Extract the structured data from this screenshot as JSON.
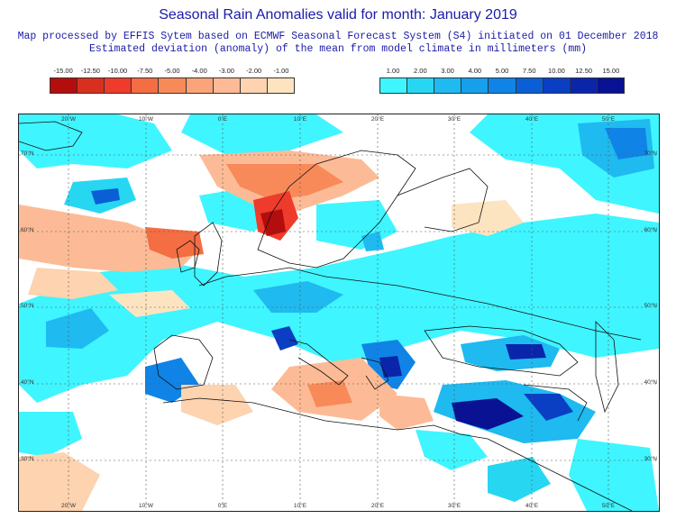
{
  "title": "Seasonal Rain Anomalies valid for month: January 2019",
  "subtitle_1": "Map processed by EFFIS Sytem based on ECMWF Seasonal Forecast System (S4) initiated on 01 December 2018",
  "subtitle_2": "Estimated deviation (anomaly) of the mean from model climate in millimeters (mm)",
  "legend_negative": {
    "labels": [
      "-15.00",
      "-12.50",
      "-10.00",
      "-7.50",
      "-5.00",
      "-4.00",
      "-3.00",
      "-2.00",
      "-1.00"
    ],
    "colors": [
      "#b30d0d",
      "#d7301f",
      "#ef3b2c",
      "#f46d43",
      "#f88a5a",
      "#fba47a",
      "#fcbb96",
      "#fdd3b0",
      "#fde4c0"
    ]
  },
  "legend_positive": {
    "labels": [
      "1.00",
      "2.00",
      "3.00",
      "4.00",
      "5.00",
      "7.50",
      "10.00",
      "12.50",
      "15.00"
    ],
    "colors": [
      "#3ff5ff",
      "#27d7f2",
      "#1ebaf0",
      "#16a0ec",
      "#0f84e6",
      "#0b5fd6",
      "#0a3fc4",
      "#0a25aa",
      "#081292"
    ]
  },
  "map": {
    "lon_labels_top": [
      "20°W",
      "10°W",
      "0°E",
      "10°E",
      "20°E",
      "30°E",
      "40°E",
      "50°E"
    ],
    "lon_labels_bottom": [
      "20°W",
      "10°W",
      "0°E",
      "10°E",
      "20°E",
      "30°E",
      "40°E",
      "50°E"
    ],
    "lat_labels": [
      "70°N",
      "60°N",
      "50°N",
      "40°N",
      "30°N"
    ]
  }
}
